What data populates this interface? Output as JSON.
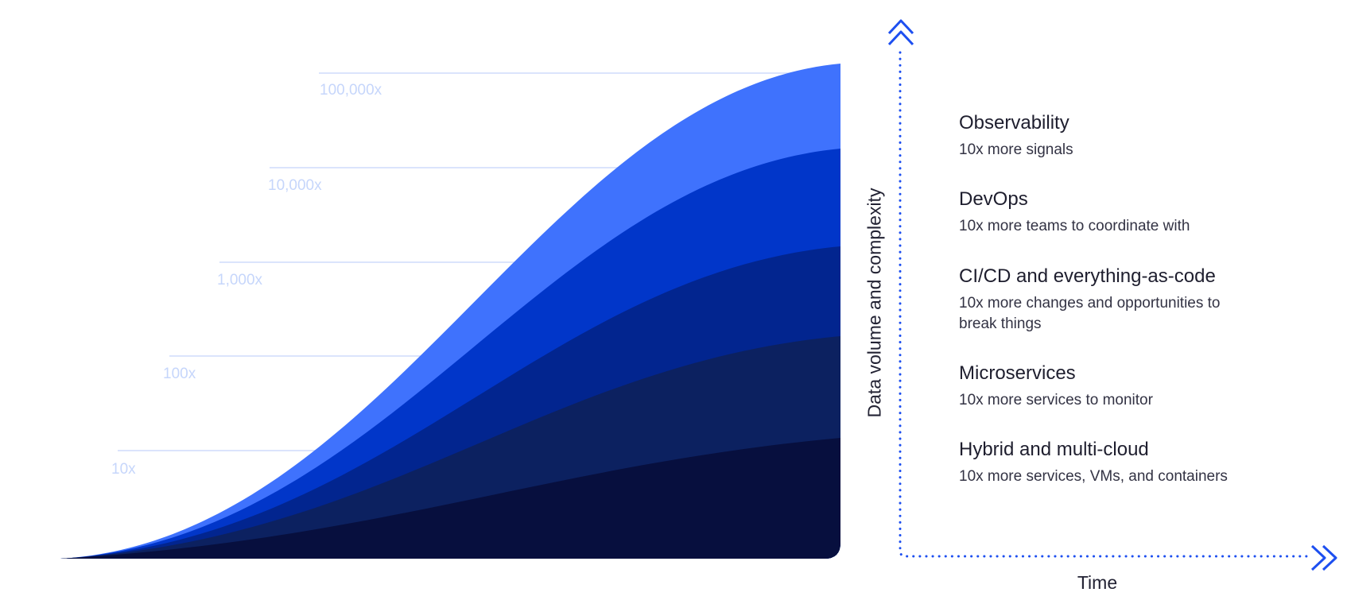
{
  "levels": [
    "10x",
    "100x",
    "1,000x",
    "10,000x",
    "100,000x"
  ],
  "axes": {
    "y_label": "Data volume and complexity",
    "x_label": "Time"
  },
  "layers": [
    {
      "color": "#070f3e"
    },
    {
      "color": "#0c2160"
    },
    {
      "color": "#02258f"
    },
    {
      "color": "#0136c9"
    },
    {
      "color": "#3f72fd"
    }
  ],
  "axis_color": "#1d4ff0",
  "items": [
    {
      "title": "Observability",
      "desc": "10x more signals"
    },
    {
      "title": "DevOps",
      "desc": "10x more teams to coordinate with"
    },
    {
      "title": "CI/CD and everything-as-code",
      "desc": "10x more changes and opportunities to break things"
    },
    {
      "title": "Microservices",
      "desc": "10x more services to monitor"
    },
    {
      "title": "Hybrid and multi-cloud",
      "desc": "10x more services, VMs, and containers"
    }
  ]
}
